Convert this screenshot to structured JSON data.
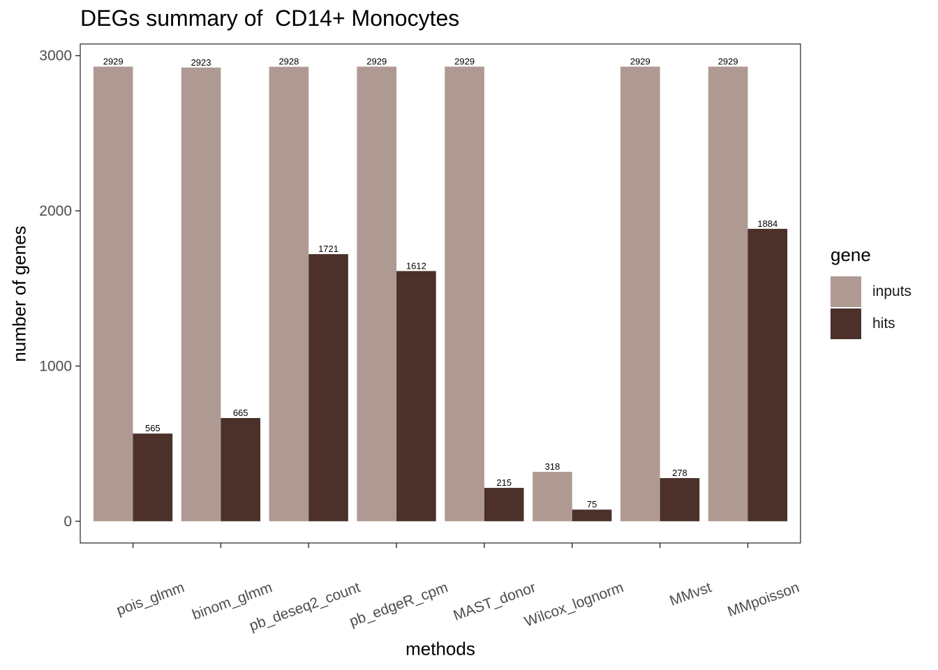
{
  "chart_data": {
    "type": "bar",
    "title": "DEGs summary of  CD14+ Monocytes",
    "xlabel": "methods",
    "ylabel": "number of genes",
    "categories": [
      "pois_glmm",
      "binom_glmm",
      "pb_deseq2_count",
      "pb_edgeR_cpm",
      "MAST_donor",
      "Wilcox_lognorm",
      "MMvst",
      "MMpoisson"
    ],
    "series": [
      {
        "name": "inputs",
        "color": "#AF9A93",
        "values": [
          2929,
          2923,
          2928,
          2929,
          2929,
          318,
          2929,
          2929
        ]
      },
      {
        "name": "hits",
        "color": "#4B312A",
        "values": [
          565,
          665,
          1721,
          1612,
          215,
          75,
          278,
          1884
        ]
      }
    ],
    "yticks": [
      0,
      1000,
      2000,
      3000
    ],
    "ylim": [
      -140,
      3075
    ],
    "grid": false,
    "legend": {
      "title": "gene",
      "position": "right"
    }
  }
}
